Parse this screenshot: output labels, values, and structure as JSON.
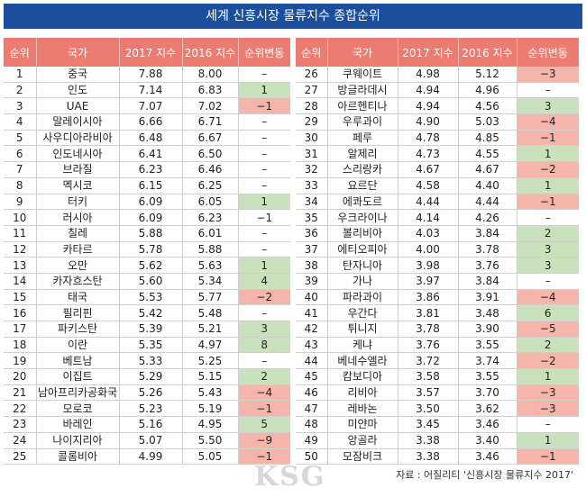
{
  "title": "세계 신흥시장 물류지수 종합순위",
  "tables": [
    {
      "headers": [
        "순위",
        "국가",
        "2017 지수",
        "2016 지수",
        "순위변동"
      ],
      "rows": [
        [
          "1",
          "중국",
          "7.88",
          "8.00",
          "–"
        ],
        [
          "2",
          "인도",
          "7.14",
          "6.83",
          "1"
        ],
        [
          "3",
          "UAE",
          "7.07",
          "7.02",
          "−1"
        ],
        [
          "4",
          "말레이시아",
          "6.66",
          "6.71",
          "–"
        ],
        [
          "5",
          "사우디아라비아",
          "6.48",
          "6.67",
          "–"
        ],
        [
          "6",
          "인도네시아",
          "6.41",
          "6.50",
          "–"
        ],
        [
          "7",
          "브라질",
          "6.23",
          "6.46",
          "–"
        ],
        [
          "8",
          "멕시코",
          "6.15",
          "6.25",
          "–"
        ],
        [
          "9",
          "터키",
          "6.09",
          "6.05",
          "1"
        ],
        [
          "10",
          "러시아",
          "6.09",
          "6.23",
          "−1"
        ],
        [
          "11",
          "칠레",
          "5.88",
          "6.01",
          "–"
        ],
        [
          "12",
          "카타르",
          "5.78",
          "5.88",
          "–"
        ],
        [
          "13",
          "오만",
          "5.62",
          "5.63",
          "1"
        ],
        [
          "14",
          "카자흐스탄",
          "5.60",
          "5.34",
          "4"
        ],
        [
          "15",
          "태국",
          "5.53",
          "5.77",
          "−2"
        ],
        [
          "16",
          "필리핀",
          "5.42",
          "5.48",
          "–"
        ],
        [
          "17",
          "파키스탄",
          "5.39",
          "5.21",
          "3"
        ],
        [
          "18",
          "이란",
          "5.35",
          "4.97",
          "8"
        ],
        [
          "19",
          "베트남",
          "5.33",
          "5.25",
          "–"
        ],
        [
          "20",
          "이집트",
          "5.29",
          "5.15",
          "2"
        ],
        [
          "21",
          "남아프리카공화국",
          "5.26",
          "5.43",
          "−4"
        ],
        [
          "22",
          "모로코",
          "5.23",
          "5.19",
          "−1"
        ],
        [
          "23",
          "바레인",
          "5.16",
          "4.95",
          "5"
        ],
        [
          "24",
          "나이지리아",
          "5.07",
          "5.50",
          "−9"
        ],
        [
          "25",
          "콜롬비아",
          "4.99",
          "5.05",
          "−1"
        ]
      ],
      "change_fill": [
        null,
        "#c9e2bd",
        "#f5b5aa",
        null,
        null,
        null,
        null,
        null,
        "#c9e2bd",
        null,
        null,
        null,
        "#c9e2bd",
        "#c9e2bd",
        "#f5b5aa",
        null,
        "#c9e2bd",
        "#c9e2bd",
        null,
        "#c9e2bd",
        "#f5b5aa",
        "#f5b5aa",
        "#c9e2bd",
        "#f5b5aa",
        "#f5b5aa"
      ]
    },
    {
      "headers": [
        "순위",
        "국가",
        "2017 지수",
        "2016 지수",
        "순위변동"
      ],
      "rows": [
        [
          "26",
          "쿠웨이트",
          "4.98",
          "5.12",
          "−3"
        ],
        [
          "27",
          "방글라데시",
          "4.94",
          "4.96",
          "–"
        ],
        [
          "28",
          "아르헨티나",
          "4.94",
          "4.56",
          "3"
        ],
        [
          "29",
          "우루과이",
          "4.90",
          "5.03",
          "−4"
        ],
        [
          "30",
          "페루",
          "4.78",
          "4.85",
          "−1"
        ],
        [
          "31",
          "알제리",
          "4.73",
          "4.55",
          "1"
        ],
        [
          "32",
          "스리랑카",
          "4.67",
          "4.67",
          "−2"
        ],
        [
          "33",
          "요르단",
          "4.58",
          "4.40",
          "1"
        ],
        [
          "34",
          "에콰도르",
          "4.44",
          "4.44",
          "−1"
        ],
        [
          "35",
          "우크라이나",
          "4.14",
          "4.26",
          "–"
        ],
        [
          "36",
          "볼리비아",
          "4.03",
          "3.84",
          "2"
        ],
        [
          "37",
          "에티오피아",
          "4.00",
          "3.78",
          "3"
        ],
        [
          "38",
          "탄자니아",
          "3.98",
          "3.76",
          "3"
        ],
        [
          "39",
          "가나",
          "3.97",
          "3.84",
          "–"
        ],
        [
          "40",
          "파라과이",
          "3.86",
          "3.91",
          "−4"
        ],
        [
          "41",
          "우간다",
          "3.81",
          "3.48",
          "6"
        ],
        [
          "42",
          "튀니지",
          "3.78",
          "3.90",
          "−5"
        ],
        [
          "43",
          "케냐",
          "3.76",
          "3.55",
          "2"
        ],
        [
          "44",
          "베네수엘라",
          "3.72",
          "3.74",
          "−2"
        ],
        [
          "45",
          "캄보디아",
          "3.58",
          "3.55",
          "1"
        ],
        [
          "46",
          "리비아",
          "3.57",
          "3.70",
          "−3"
        ],
        [
          "47",
          "레바논",
          "3.50",
          "3.62",
          "−3"
        ],
        [
          "48",
          "미얀마",
          "3.45",
          "3.46",
          "–"
        ],
        [
          "49",
          "앙골라",
          "3.38",
          "3.40",
          "1"
        ],
        [
          "50",
          "모잠비크",
          "3.38",
          "3.46",
          "−1"
        ]
      ],
      "change_fill": [
        "#f5b5aa",
        null,
        "#c9e2bd",
        "#f5b5aa",
        "#f5b5aa",
        "#c9e2bd",
        "#f5b5aa",
        "#c9e2bd",
        "#f5b5aa",
        null,
        "#c9e2bd",
        "#c9e2bd",
        "#c9e2bd",
        null,
        "#f5b5aa",
        "#c9e2bd",
        "#f5b5aa",
        "#c9e2bd",
        "#f5b5aa",
        "#c9e2bd",
        "#f5b5aa",
        "#f5b5aa",
        null,
        "#c9e2bd",
        "#f5b5aa"
      ]
    }
  ],
  "source": "자료 : 어질리티 '신흥시장 물류지수 2017'",
  "watermark": "KSG"
}
